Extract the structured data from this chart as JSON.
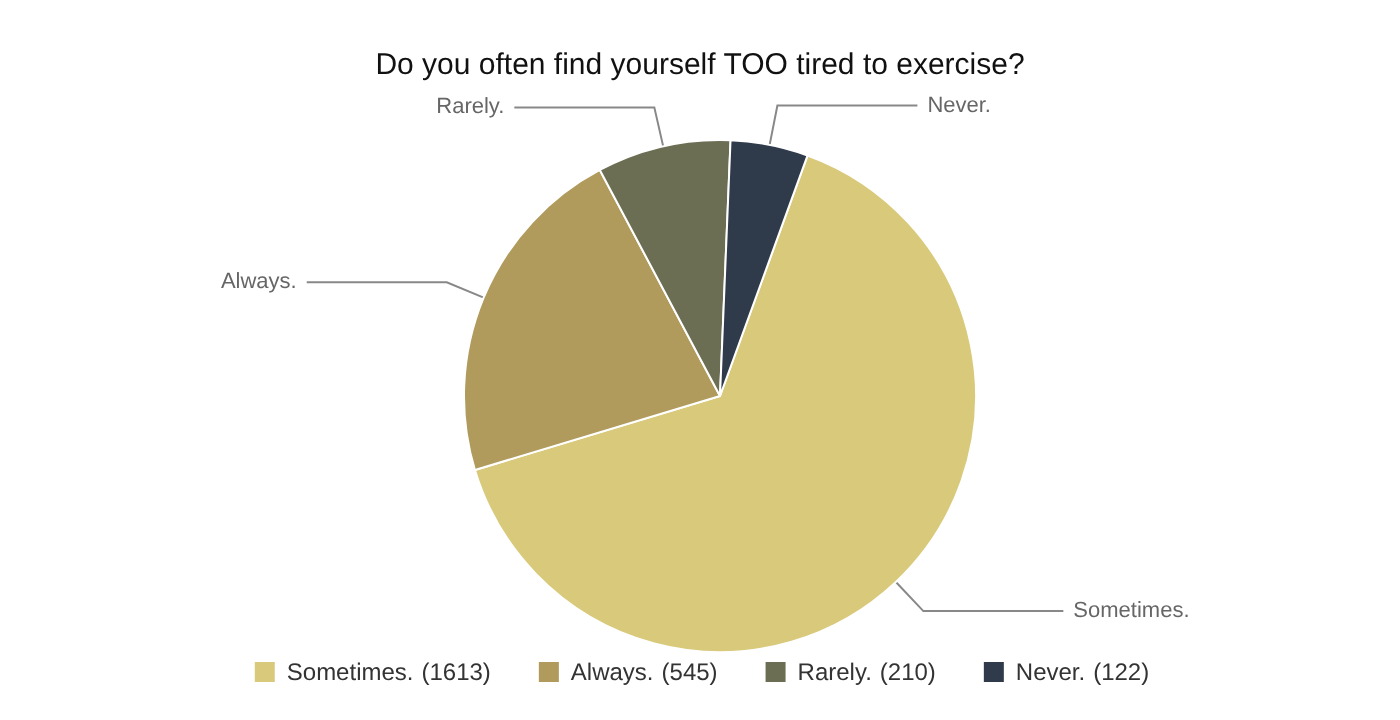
{
  "chart_data": {
    "type": "pie",
    "title": "Do you often find yourself TOO tired to exercise?",
    "categories": [
      "Sometimes.",
      "Always.",
      "Rarely.",
      "Never."
    ],
    "values": [
      1613,
      545,
      210,
      122
    ],
    "value_labels": [
      "(1613)",
      "(545)",
      "(210)",
      "(122)"
    ],
    "colors": [
      "#d9c97a",
      "#b09a5c",
      "#6b6e52",
      "#2f3a4a"
    ],
    "legend": "bottom"
  }
}
